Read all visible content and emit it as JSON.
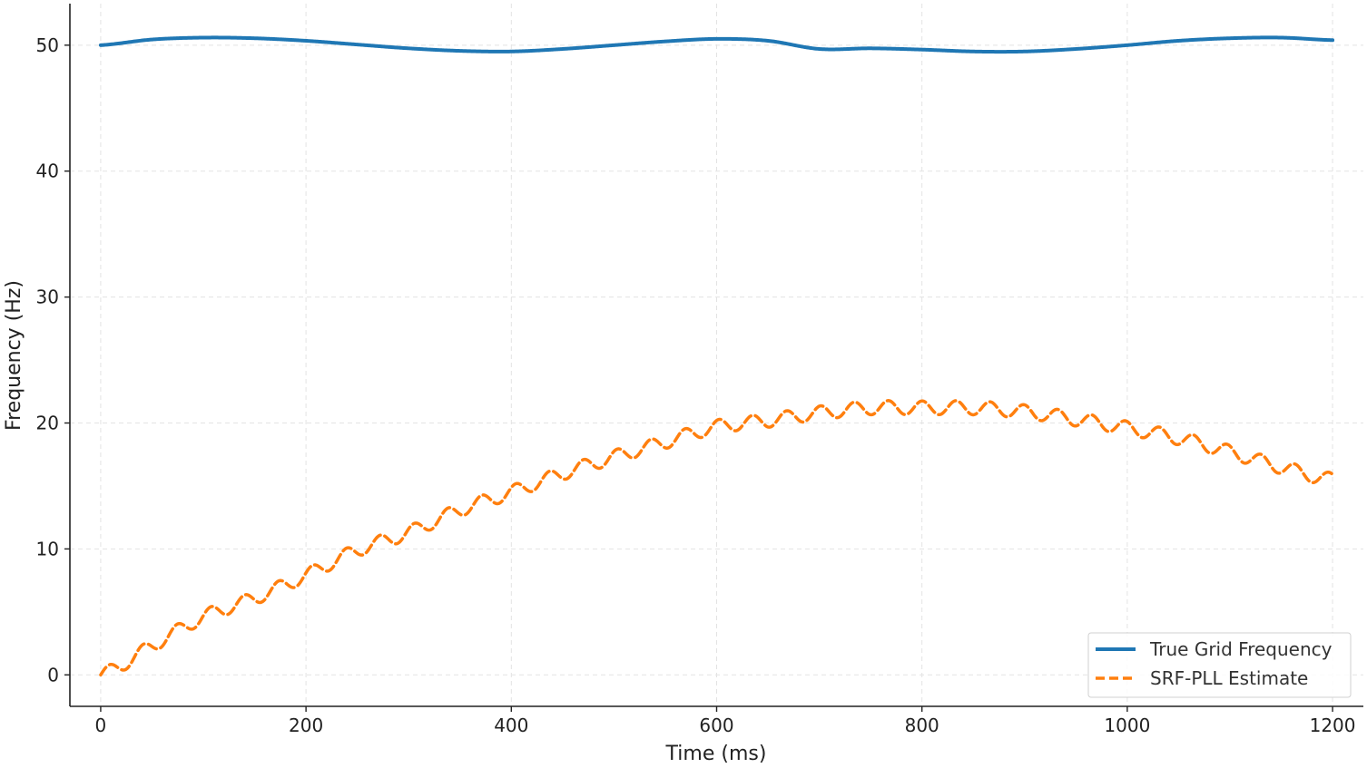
{
  "chart_data": {
    "type": "line",
    "title": "",
    "xlabel": "Time (ms)",
    "ylabel": "Frequency (Hz)",
    "xlim": [
      -30,
      1230
    ],
    "ylim": [
      -2.5,
      53.3
    ],
    "xticks": [
      0,
      200,
      400,
      600,
      800,
      1000,
      1200
    ],
    "yticks": [
      0,
      10,
      20,
      30,
      40,
      50
    ],
    "grid": true,
    "legend_position": "bottom-right",
    "colors": {
      "true_freq": "#1f77b4",
      "srf_pll": "#ff7f0e"
    },
    "series": [
      {
        "name": "True Grid Frequency",
        "style": "solid",
        "x": [
          0,
          50,
          100,
          150,
          200,
          250,
          300,
          350,
          400,
          450,
          500,
          550,
          600,
          650,
          700,
          750,
          800,
          850,
          900,
          950,
          1000,
          1050,
          1100,
          1150,
          1200
        ],
        "y": [
          50.0,
          50.45,
          50.6,
          50.55,
          50.35,
          50.05,
          49.75,
          49.55,
          49.5,
          49.7,
          50.0,
          50.3,
          50.5,
          50.35,
          49.7,
          49.75,
          49.65,
          49.5,
          49.5,
          49.7,
          50.0,
          50.35,
          50.55,
          50.6,
          50.4
        ]
      },
      {
        "name": "SRF-PLL Estimate",
        "style": "dashed",
        "x": [
          0,
          50,
          100,
          150,
          200,
          250,
          300,
          350,
          400,
          450,
          500,
          550,
          600,
          650,
          700,
          750,
          800,
          850,
          900,
          950,
          1000,
          1050,
          1100,
          1150,
          1200
        ],
        "y": [
          0.0,
          2.3,
          4.6,
          6.1,
          7.9,
          9.9,
          11.3,
          13.1,
          14.5,
          16.0,
          17.3,
          18.5,
          19.7,
          20.2,
          20.8,
          21.2,
          21.2,
          21.2,
          20.9,
          20.3,
          19.6,
          18.8,
          17.7,
          16.5,
          15.5
        ]
      }
    ]
  }
}
